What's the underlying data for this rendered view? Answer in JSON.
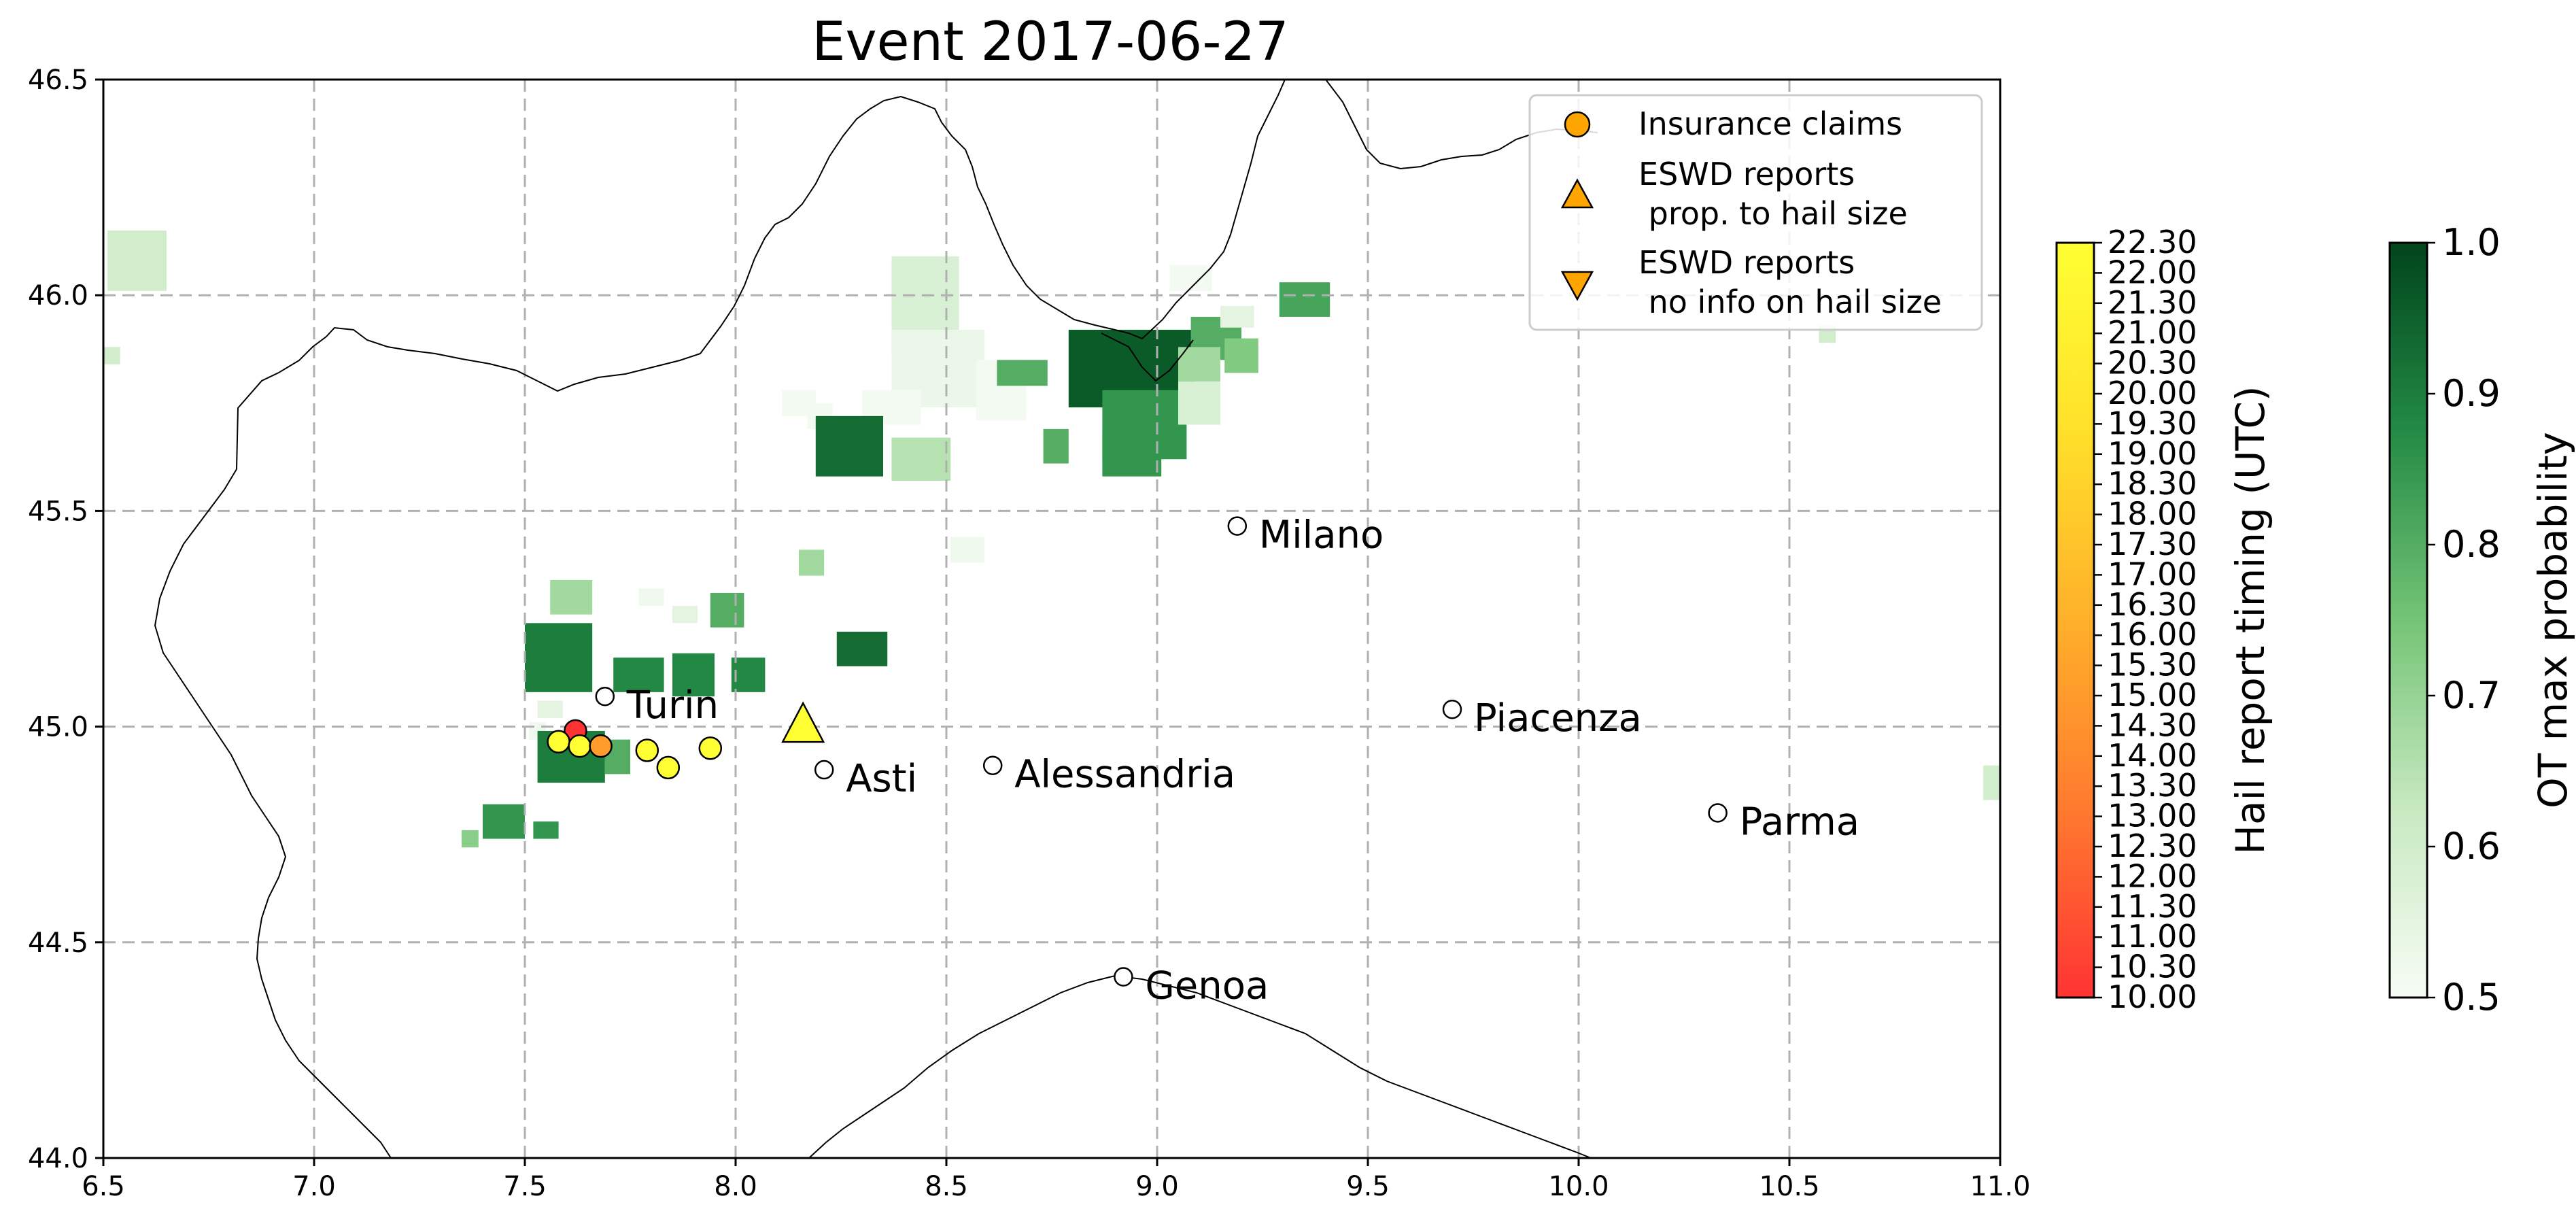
{
  "title": "Event 2017-06-27",
  "map": {
    "lon_range": [
      6.5,
      11.0
    ],
    "lat_range": [
      44.0,
      46.5
    ],
    "x_ticks": [
      6.5,
      7.0,
      7.5,
      8.0,
      8.5,
      9.0,
      9.5,
      10.0,
      10.5,
      11.0
    ],
    "y_ticks": [
      44.0,
      44.5,
      45.0,
      45.5,
      46.0,
      46.5
    ],
    "x_tick_labels": [
      "6.5",
      "7.0",
      "7.5",
      "8.0",
      "8.5",
      "9.0",
      "9.5",
      "10.0",
      "10.5",
      "11.0"
    ],
    "y_tick_labels": [
      "44.0",
      "44.5",
      "45.0",
      "45.5",
      "46.0",
      "46.5"
    ],
    "grid": true
  },
  "cities": [
    {
      "name": "Turin",
      "lon": 7.69,
      "lat": 45.07
    },
    {
      "name": "Milano",
      "lon": 9.19,
      "lat": 45.465
    },
    {
      "name": "Asti",
      "lon": 8.21,
      "lat": 44.9
    },
    {
      "name": "Alessandria",
      "lon": 8.61,
      "lat": 44.91
    },
    {
      "name": "Piacenza",
      "lon": 9.7,
      "lat": 45.04
    },
    {
      "name": "Parma",
      "lon": 10.33,
      "lat": 44.8
    },
    {
      "name": "Genoa",
      "lon": 8.92,
      "lat": 44.42
    }
  ],
  "insurance_claims": [
    {
      "lon": 7.62,
      "lat": 44.99,
      "time": 10.0
    },
    {
      "lon": 7.58,
      "lat": 44.965,
      "time": 22.3
    },
    {
      "lon": 7.63,
      "lat": 44.955,
      "time": 22.3
    },
    {
      "lon": 7.68,
      "lat": 44.955,
      "time": 15.0
    },
    {
      "lon": 7.79,
      "lat": 44.945,
      "time": 22.3
    },
    {
      "lon": 7.84,
      "lat": 44.905,
      "time": 22.3
    },
    {
      "lon": 7.94,
      "lat": 44.95,
      "time": 22.3
    }
  ],
  "eswd_reports": [
    {
      "lon": 8.16,
      "lat": 45.0,
      "time": 22.3,
      "hail_size": true
    }
  ],
  "ot_cells": [
    {
      "lon": 6.58,
      "lat": 46.08,
      "w": 0.14,
      "h": 0.14,
      "p": 0.6
    },
    {
      "lon": 6.52,
      "lat": 45.86,
      "w": 0.04,
      "h": 0.04,
      "p": 0.6
    },
    {
      "lon": 8.45,
      "lat": 45.98,
      "w": 0.16,
      "h": 0.22,
      "p": 0.58
    },
    {
      "lon": 8.48,
      "lat": 45.83,
      "w": 0.22,
      "h": 0.18,
      "p": 0.53
    },
    {
      "lon": 8.63,
      "lat": 45.78,
      "w": 0.12,
      "h": 0.14,
      "p": 0.51
    },
    {
      "lon": 8.68,
      "lat": 45.82,
      "w": 0.12,
      "h": 0.06,
      "p": 0.8
    },
    {
      "lon": 8.37,
      "lat": 45.74,
      "w": 0.14,
      "h": 0.08,
      "p": 0.51
    },
    {
      "lon": 8.2,
      "lat": 45.72,
      "w": 0.06,
      "h": 0.06,
      "p": 0.51
    },
    {
      "lon": 8.44,
      "lat": 45.62,
      "w": 0.14,
      "h": 0.1,
      "p": 0.65
    },
    {
      "lon": 8.27,
      "lat": 45.65,
      "w": 0.16,
      "h": 0.14,
      "p": 0.93
    },
    {
      "lon": 8.15,
      "lat": 45.75,
      "w": 0.08,
      "h": 0.06,
      "p": 0.51
    },
    {
      "lon": 8.76,
      "lat": 45.65,
      "w": 0.06,
      "h": 0.08,
      "p": 0.8
    },
    {
      "lon": 8.94,
      "lat": 45.83,
      "w": 0.3,
      "h": 0.18,
      "p": 0.96
    },
    {
      "lon": 8.97,
      "lat": 45.7,
      "w": 0.2,
      "h": 0.16,
      "p": 0.85
    },
    {
      "lon": 8.94,
      "lat": 45.63,
      "w": 0.14,
      "h": 0.1,
      "p": 0.85
    },
    {
      "lon": 9.14,
      "lat": 45.9,
      "w": 0.12,
      "h": 0.1,
      "p": 0.8
    },
    {
      "lon": 9.19,
      "lat": 45.95,
      "w": 0.08,
      "h": 0.05,
      "p": 0.55
    },
    {
      "lon": 9.2,
      "lat": 45.86,
      "w": 0.08,
      "h": 0.08,
      "p": 0.73
    },
    {
      "lon": 9.1,
      "lat": 45.84,
      "w": 0.1,
      "h": 0.08,
      "p": 0.68
    },
    {
      "lon": 9.1,
      "lat": 45.75,
      "w": 0.1,
      "h": 0.1,
      "p": 0.58
    },
    {
      "lon": 9.08,
      "lat": 46.04,
      "w": 0.1,
      "h": 0.06,
      "p": 0.51
    },
    {
      "lon": 9.35,
      "lat": 45.99,
      "w": 0.12,
      "h": 0.08,
      "p": 0.82
    },
    {
      "lon": 8.55,
      "lat": 45.41,
      "w": 0.08,
      "h": 0.06,
      "p": 0.52
    },
    {
      "lon": 8.18,
      "lat": 45.38,
      "w": 0.06,
      "h": 0.06,
      "p": 0.68
    },
    {
      "lon": 7.61,
      "lat": 45.3,
      "w": 0.1,
      "h": 0.08,
      "p": 0.68
    },
    {
      "lon": 7.58,
      "lat": 45.16,
      "w": 0.16,
      "h": 0.16,
      "p": 0.9
    },
    {
      "lon": 7.77,
      "lat": 45.12,
      "w": 0.12,
      "h": 0.08,
      "p": 0.88
    },
    {
      "lon": 7.9,
      "lat": 45.12,
      "w": 0.1,
      "h": 0.1,
      "p": 0.88
    },
    {
      "lon": 8.03,
      "lat": 45.12,
      "w": 0.08,
      "h": 0.08,
      "p": 0.88
    },
    {
      "lon": 7.98,
      "lat": 45.27,
      "w": 0.08,
      "h": 0.08,
      "p": 0.8
    },
    {
      "lon": 7.88,
      "lat": 45.26,
      "w": 0.06,
      "h": 0.04,
      "p": 0.55
    },
    {
      "lon": 7.8,
      "lat": 45.3,
      "w": 0.06,
      "h": 0.04,
      "p": 0.52
    },
    {
      "lon": 7.56,
      "lat": 45.04,
      "w": 0.06,
      "h": 0.04,
      "p": 0.55
    },
    {
      "lon": 7.53,
      "lat": 44.99,
      "w": 0.04,
      "h": 0.04,
      "p": 0.52
    },
    {
      "lon": 8.3,
      "lat": 45.18,
      "w": 0.12,
      "h": 0.08,
      "p": 0.93
    },
    {
      "lon": 7.61,
      "lat": 44.93,
      "w": 0.16,
      "h": 0.12,
      "p": 0.9
    },
    {
      "lon": 7.72,
      "lat": 44.93,
      "w": 0.06,
      "h": 0.08,
      "p": 0.8
    },
    {
      "lon": 7.45,
      "lat": 44.78,
      "w": 0.1,
      "h": 0.08,
      "p": 0.85
    },
    {
      "lon": 7.55,
      "lat": 44.76,
      "w": 0.06,
      "h": 0.04,
      "p": 0.85
    },
    {
      "lon": 7.37,
      "lat": 44.74,
      "w": 0.04,
      "h": 0.04,
      "p": 0.72
    },
    {
      "lon": 10.59,
      "lat": 45.91,
      "w": 0.04,
      "h": 0.04,
      "p": 0.6
    },
    {
      "lon": 10.98,
      "lat": 44.87,
      "w": 0.04,
      "h": 0.08,
      "p": 0.6
    }
  ],
  "legend": {
    "items": [
      {
        "marker": "circle",
        "label_lines": [
          "Insurance claims"
        ]
      },
      {
        "marker": "triangle-up",
        "label_lines": [
          "ESWD reports",
          " prop. to hail size"
        ]
      },
      {
        "marker": "triangle-down",
        "label_lines": [
          "ESWD reports",
          " no info on hail size"
        ]
      }
    ],
    "marker_color": "#ffa500"
  },
  "colorbar_time": {
    "label": "Hail report timing (UTC)",
    "range": [
      10.0,
      22.3
    ],
    "tick_labels": [
      "10.00",
      "10.30",
      "11.00",
      "11.30",
      "12.00",
      "12.30",
      "13.00",
      "13.30",
      "14.00",
      "14.30",
      "15.00",
      "15.30",
      "16.00",
      "16.30",
      "17.00",
      "17.30",
      "18.00",
      "18.30",
      "19.00",
      "19.30",
      "20.00",
      "20.30",
      "21.00",
      "21.30",
      "22.00",
      "22.30"
    ],
    "colors": [
      "#ff3333",
      "#ff7a2e",
      "#ffb02a",
      "#ffe02a",
      "#ffff33"
    ]
  },
  "colorbar_prob": {
    "label": "OT max probability",
    "range": [
      0.5,
      1.0
    ],
    "tick_labels": [
      "0.5",
      "0.6",
      "0.7",
      "0.8",
      "0.9",
      "1.0"
    ],
    "colors": [
      "#f7fcf5",
      "#c7e9c0",
      "#74c476",
      "#238b45",
      "#00441b"
    ]
  }
}
